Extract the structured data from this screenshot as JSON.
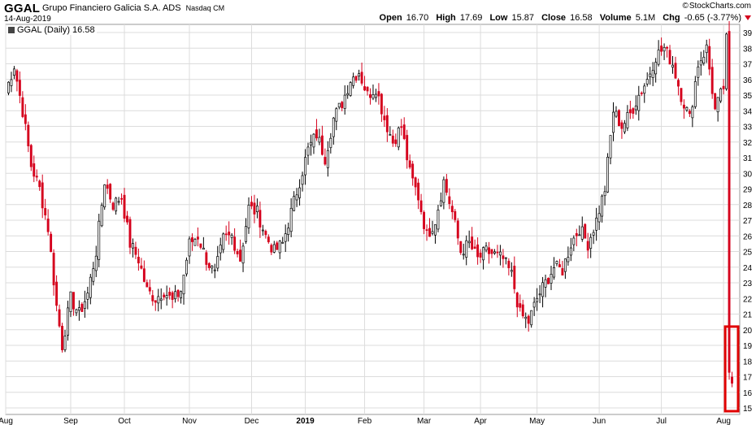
{
  "header": {
    "ticker": "GGAL",
    "company": "Grupo Financiero Galicia S.A. ADS",
    "exchange": "Nasdaq CM",
    "date": "14-Aug-2019",
    "brand": "StockCharts.com",
    "brand_symbol": "©",
    "open_label": "Open",
    "open": "16.70",
    "high_label": "High",
    "high": "17.69",
    "low_label": "Low",
    "low": "15.87",
    "close_label": "Close",
    "close": "16.58",
    "volume_label": "Volume",
    "volume": "5.1M",
    "chg_label": "Chg",
    "chg": "-0.65 (-3.77%)",
    "down_color": "#d5001c"
  },
  "legend": {
    "label": "GGAL (Daily) 16.58"
  },
  "highlight": {
    "color": "#e00000",
    "note": "boxed area around last sessions"
  },
  "chart_data": {
    "type": "candlestick",
    "title": "GGAL (Daily) 16.58",
    "ylim": [
      15,
      39
    ],
    "y_ticks": [
      15,
      16,
      17,
      18,
      19,
      20,
      21,
      22,
      23,
      24,
      25,
      26,
      27,
      28,
      29,
      30,
      31,
      32,
      33,
      34,
      35,
      36,
      37,
      38,
      39
    ],
    "x_tick_labels": [
      "Aug",
      "Sep",
      "Oct",
      "Nov",
      "Dec",
      "2019",
      "Feb",
      "Mar",
      "Apr",
      "May",
      "Jun",
      "Jul",
      "Aug"
    ],
    "x_tick_days": [
      0,
      23,
      42,
      65,
      87,
      106,
      127,
      148,
      168,
      188,
      210,
      232,
      254
    ],
    "grid": true,
    "up_color": "#ffffff",
    "up_outline": "#000000",
    "down_color": "#d5001c",
    "last_close": 16.58,
    "weekly_closes": [
      {
        "day": 0,
        "close": 35.2
      },
      {
        "day": 3,
        "close": 36.9
      },
      {
        "day": 6,
        "close": 34.0
      },
      {
        "day": 9,
        "close": 30.5
      },
      {
        "day": 12,
        "close": 29.0
      },
      {
        "day": 15,
        "close": 26.5
      },
      {
        "day": 18,
        "close": 21.5
      },
      {
        "day": 20,
        "close": 19.0
      },
      {
        "day": 23,
        "close": 22.0
      },
      {
        "day": 26,
        "close": 21.0
      },
      {
        "day": 29,
        "close": 22.3
      },
      {
        "day": 32,
        "close": 25.0
      },
      {
        "day": 35,
        "close": 29.5
      },
      {
        "day": 38,
        "close": 28.0
      },
      {
        "day": 41,
        "close": 28.5
      },
      {
        "day": 44,
        "close": 25.5
      },
      {
        "day": 47,
        "close": 24.5
      },
      {
        "day": 50,
        "close": 22.5
      },
      {
        "day": 53,
        "close": 22.0
      },
      {
        "day": 56,
        "close": 22.5
      },
      {
        "day": 59,
        "close": 21.8
      },
      {
        "day": 62,
        "close": 22.5
      },
      {
        "day": 65,
        "close": 25.5
      },
      {
        "day": 68,
        "close": 26.0
      },
      {
        "day": 71,
        "close": 24.5
      },
      {
        "day": 74,
        "close": 23.5
      },
      {
        "day": 77,
        "close": 25.8
      },
      {
        "day": 80,
        "close": 26.0
      },
      {
        "day": 83,
        "close": 24.5
      },
      {
        "day": 86,
        "close": 27.8
      },
      {
        "day": 89,
        "close": 27.5
      },
      {
        "day": 92,
        "close": 26.0
      },
      {
        "day": 95,
        "close": 25.0
      },
      {
        "day": 98,
        "close": 25.5
      },
      {
        "day": 101,
        "close": 27.5
      },
      {
        "day": 104,
        "close": 29.5
      },
      {
        "day": 107,
        "close": 31.5
      },
      {
        "day": 110,
        "close": 32.5
      },
      {
        "day": 113,
        "close": 31.0
      },
      {
        "day": 116,
        "close": 33.5
      },
      {
        "day": 119,
        "close": 34.5
      },
      {
        "day": 122,
        "close": 36.0
      },
      {
        "day": 125,
        "close": 36.5
      },
      {
        "day": 128,
        "close": 35.0
      },
      {
        "day": 131,
        "close": 35.5
      },
      {
        "day": 134,
        "close": 33.5
      },
      {
        "day": 137,
        "close": 32.0
      },
      {
        "day": 140,
        "close": 33.0
      },
      {
        "day": 143,
        "close": 30.0
      },
      {
        "day": 146,
        "close": 28.5
      },
      {
        "day": 149,
        "close": 26.0
      },
      {
        "day": 152,
        "close": 27.0
      },
      {
        "day": 155,
        "close": 29.5
      },
      {
        "day": 158,
        "close": 27.5
      },
      {
        "day": 161,
        "close": 25.0
      },
      {
        "day": 164,
        "close": 25.5
      },
      {
        "day": 167,
        "close": 24.5
      },
      {
        "day": 170,
        "close": 25.0
      },
      {
        "day": 173,
        "close": 24.8
      },
      {
        "day": 176,
        "close": 24.5
      },
      {
        "day": 179,
        "close": 23.5
      },
      {
        "day": 182,
        "close": 21.0
      },
      {
        "day": 185,
        "close": 20.5
      },
      {
        "day": 188,
        "close": 22.0
      },
      {
        "day": 191,
        "close": 23.0
      },
      {
        "day": 194,
        "close": 24.0
      },
      {
        "day": 197,
        "close": 23.8
      },
      {
        "day": 200,
        "close": 25.5
      },
      {
        "day": 203,
        "close": 26.5
      },
      {
        "day": 206,
        "close": 25.5
      },
      {
        "day": 209,
        "close": 27.0
      },
      {
        "day": 212,
        "close": 29.0
      },
      {
        "day": 215,
        "close": 34.0
      },
      {
        "day": 218,
        "close": 33.0
      },
      {
        "day": 221,
        "close": 33.8
      },
      {
        "day": 224,
        "close": 35.0
      },
      {
        "day": 227,
        "close": 36.0
      },
      {
        "day": 230,
        "close": 37.5
      },
      {
        "day": 233,
        "close": 38.0
      },
      {
        "day": 236,
        "close": 37.0
      },
      {
        "day": 239,
        "close": 35.0
      },
      {
        "day": 242,
        "close": 33.5
      },
      {
        "day": 245,
        "close": 37.0
      },
      {
        "day": 248,
        "close": 38.0
      },
      {
        "day": 251,
        "close": 34.0
      },
      {
        "day": 254,
        "close": 35.5
      },
      {
        "day": 255,
        "close": 38.5
      },
      {
        "day": 256,
        "close": 17.0
      },
      {
        "day": 257,
        "close": 16.58
      }
    ]
  }
}
